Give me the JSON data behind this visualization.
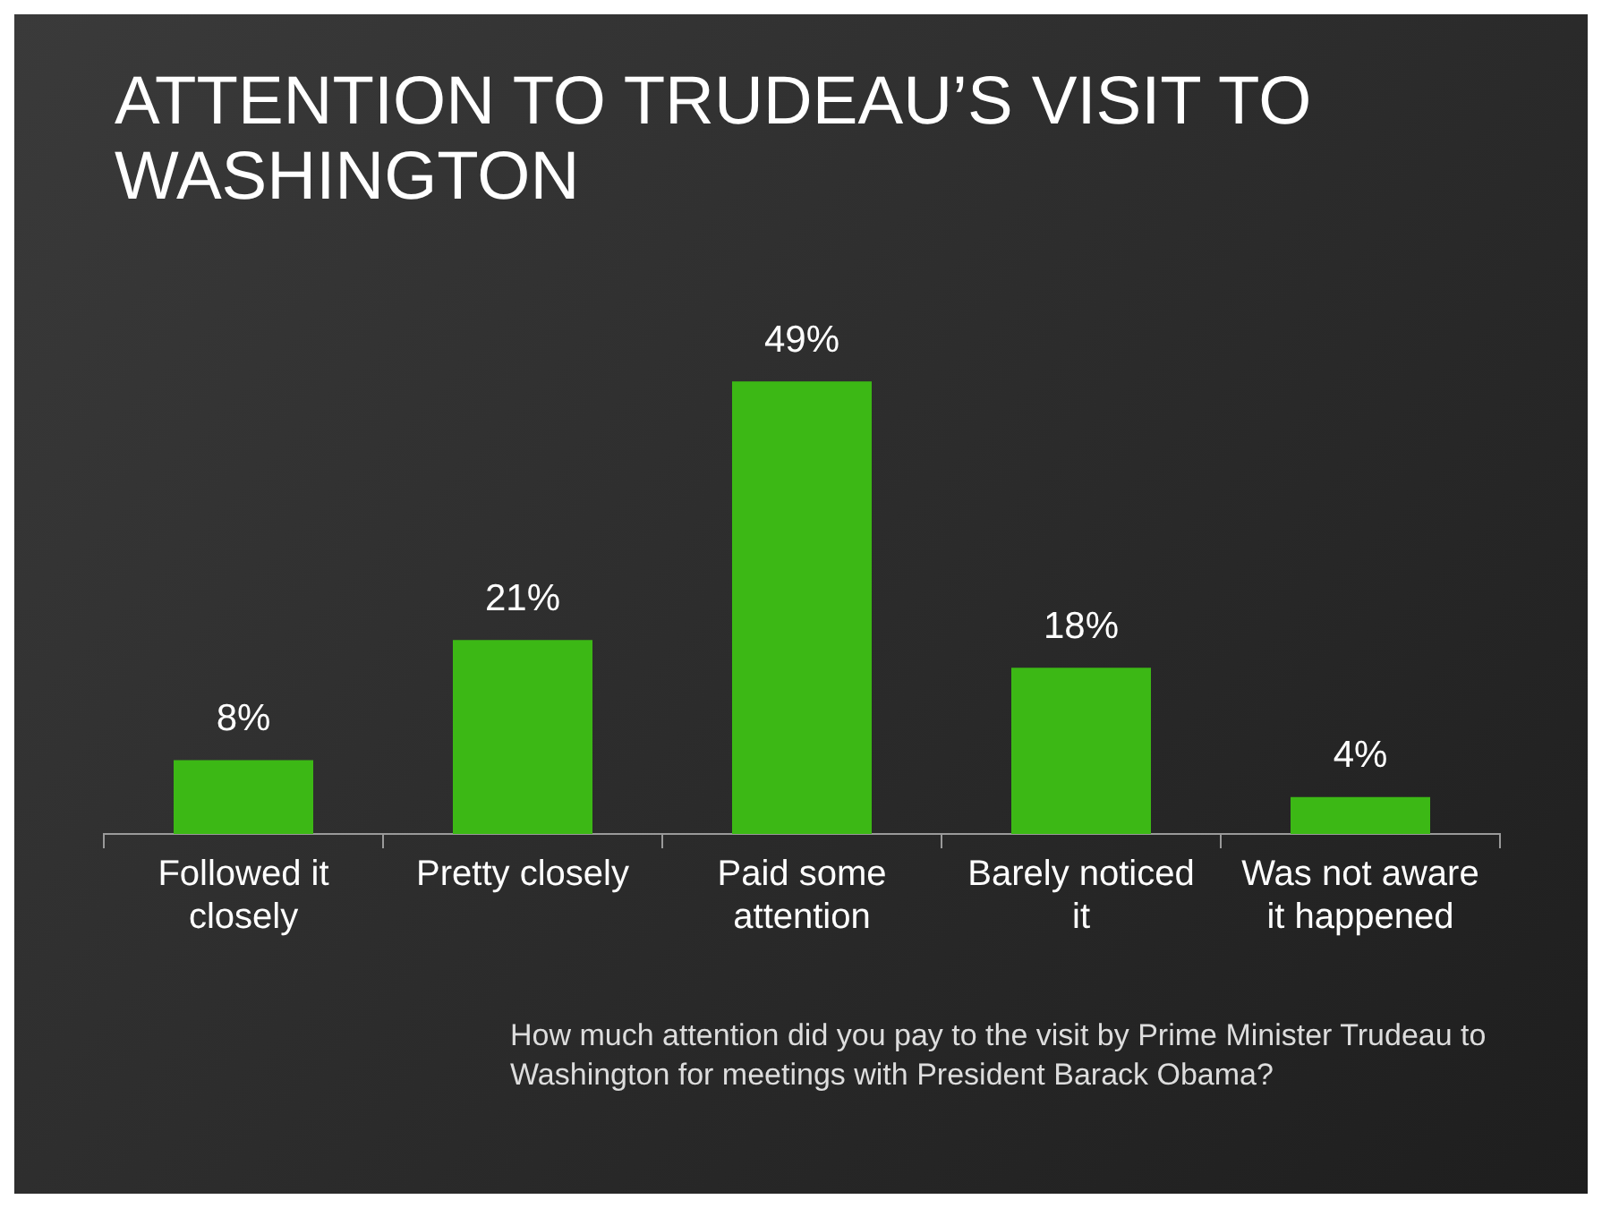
{
  "chart_data": {
    "type": "bar",
    "title": "ATTENTION TO TRUDEAU’S VISIT TO WASHINGTON",
    "categories": [
      "Followed it closely",
      "Pretty closely",
      "Paid some attention",
      "Barely noticed it",
      "Was not aware it happened"
    ],
    "values": [
      8,
      21,
      49,
      18,
      4
    ],
    "value_labels": [
      "8%",
      "21%",
      "49%",
      "18%",
      "4%"
    ],
    "color": "#3cb815",
    "tick_labels": "x",
    "grid": false,
    "legend": false,
    "annotations": [
      "How much attention did you pay to the visit by Prime Minister Trudeau to Washington for meetings with President Barack Obama?"
    ]
  }
}
